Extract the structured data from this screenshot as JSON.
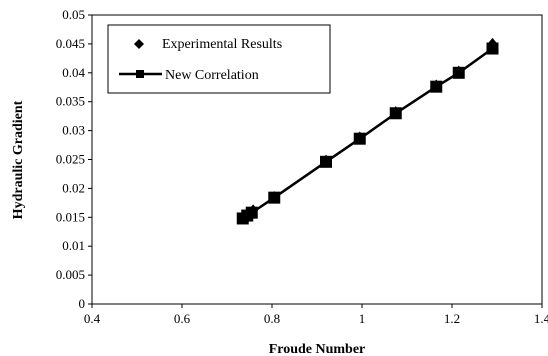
{
  "chart_data": {
    "type": "scatter",
    "xlabel": "Froude Number",
    "ylabel": "Hydraulic Gradient",
    "xlim": [
      0.4,
      1.4
    ],
    "ylim": [
      0,
      0.05
    ],
    "x_ticks": [
      "0.4",
      "0.6",
      "0.8",
      "1",
      "1.2",
      "1.4"
    ],
    "y_ticks": [
      "0",
      "0.005",
      "0.01",
      "0.015",
      "0.02",
      "0.025",
      "0.03",
      "0.035",
      "0.04",
      "0.045",
      "0.05"
    ],
    "grid": false,
    "legend_position": "top-left",
    "series": [
      {
        "name": "Experimental Results",
        "marker": "diamond",
        "line": false,
        "color": "#000000",
        "x": [
          0.735,
          0.748,
          0.758,
          0.805,
          0.92,
          0.995,
          1.075,
          1.165,
          1.215,
          1.29
        ],
        "y": [
          0.015,
          0.0158,
          0.0162,
          0.0185,
          0.0248,
          0.0288,
          0.0332,
          0.0378,
          0.0402,
          0.045
        ]
      },
      {
        "name": "New Correlation",
        "marker": "square",
        "line": true,
        "color": "#000000",
        "x": [
          0.735,
          0.745,
          0.755,
          0.805,
          0.92,
          0.995,
          1.075,
          1.165,
          1.215,
          1.29
        ],
        "y": [
          0.0148,
          0.0153,
          0.0158,
          0.0184,
          0.0246,
          0.0286,
          0.033,
          0.0376,
          0.04,
          0.0442
        ]
      }
    ]
  }
}
